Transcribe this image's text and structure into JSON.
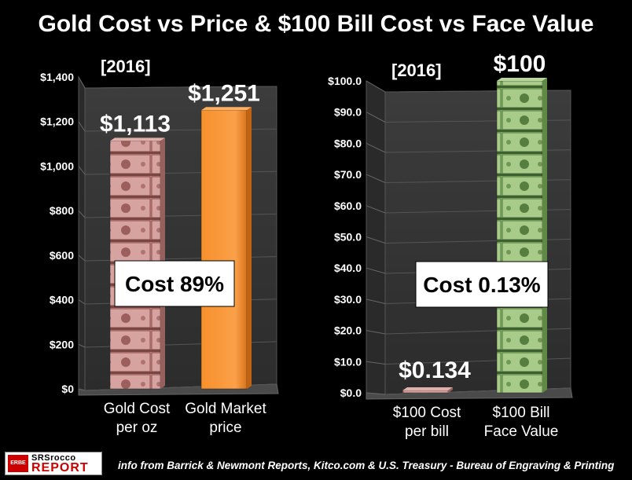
{
  "title": "Gold Cost vs Price & $100 Bill Cost vs Face Value",
  "footer": "info from Barrick & Newmont Reports, Kitco.com & U.S. Treasury - Bureau of Engraving & Printing",
  "logo": {
    "badge": "ERBE",
    "line1": "SRSrocco",
    "line2": "REPORT"
  },
  "colors": {
    "orange": "#f7902b",
    "pinkBill": "#c98a86",
    "greenBill": "#8fb86e",
    "background": "#000000",
    "wall": "#3a3a3a"
  },
  "chart_data": [
    {
      "type": "bar",
      "year_label": "[2016]",
      "categories": [
        "Gold Cost\nper oz",
        "Gold Market\nprice"
      ],
      "values": [
        1113,
        1251
      ],
      "value_labels": [
        "$1,113",
        "$1,251"
      ],
      "bar_styles": [
        "pink-bills",
        "orange"
      ],
      "ylim": [
        0,
        1400
      ],
      "yticks": [
        0,
        200,
        400,
        600,
        800,
        1000,
        1200,
        1400
      ],
      "ytick_labels": [
        "$0",
        "$200",
        "$400",
        "$600",
        "$800",
        "$1,000",
        "$1,200",
        "$1,400"
      ],
      "annotation": "Cost 89%",
      "grid": true
    },
    {
      "type": "bar",
      "year_label": "[2016]",
      "categories": [
        "$100 Cost\nper bill",
        "$100 Bill\nFace Value"
      ],
      "values": [
        0.134,
        100
      ],
      "value_labels": [
        "$0.134",
        "$100"
      ],
      "bar_styles": [
        "pink-bills",
        "green-bills"
      ],
      "ylim": [
        0,
        100
      ],
      "yticks": [
        0,
        10,
        20,
        30,
        40,
        50,
        60,
        70,
        80,
        90,
        100
      ],
      "ytick_labels": [
        "$0.0",
        "$10.0",
        "$20.0",
        "$30.0",
        "$40.0",
        "$50.0",
        "$60.0",
        "$70.0",
        "$80.0",
        "$90.0",
        "$100.0"
      ],
      "annotation": "Cost 0.13%",
      "grid": true
    }
  ]
}
